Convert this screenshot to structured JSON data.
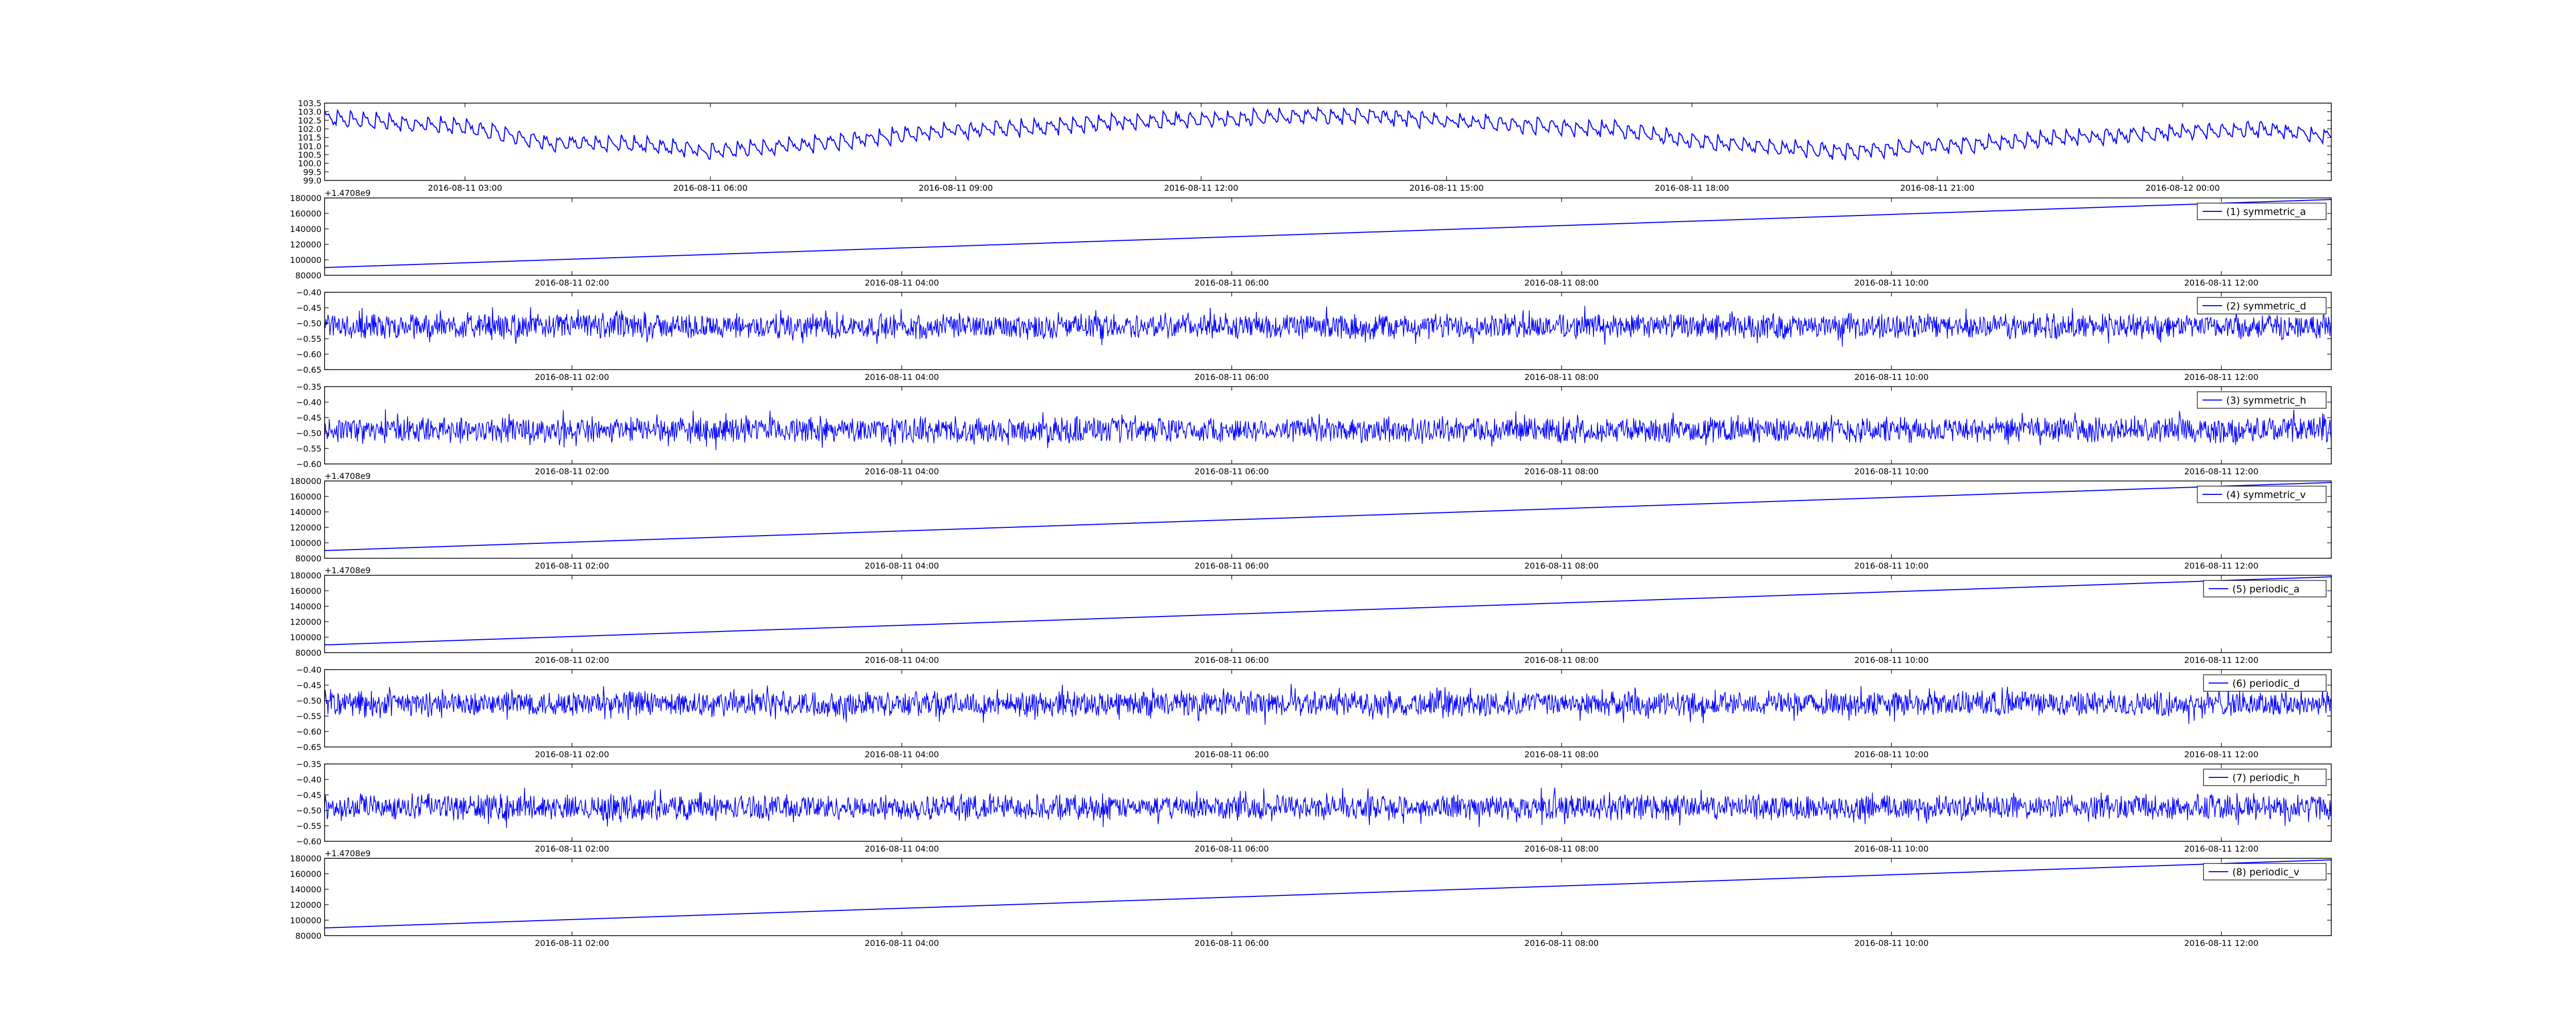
{
  "figure": {
    "background": "#ffffff",
    "line_color": "#0000ff"
  },
  "chart_data": [
    {
      "type": "line",
      "legend": "",
      "offset_label": "",
      "ylim": [
        99.0,
        103.5
      ],
      "yticks": [
        "99.0",
        "99.5",
        "100.0",
        "100.5",
        "101.0",
        "101.5",
        "102.0",
        "102.5",
        "103.0",
        "103.5"
      ],
      "xlim": [
        "2016-08-11 01:17",
        "2016-08-12 01:49"
      ],
      "xticks": [
        {
          "x": "2016-08-11 03:00",
          "label": "2016-08-11 03:00"
        },
        {
          "x": "2016-08-11 06:00",
          "label": "2016-08-11 06:00"
        },
        {
          "x": "2016-08-11 09:00",
          "label": "2016-08-11 09:00"
        },
        {
          "x": "2016-08-11 12:00",
          "label": "2016-08-11 12:00"
        },
        {
          "x": "2016-08-11 15:00",
          "label": "2016-08-11 15:00"
        },
        {
          "x": "2016-08-11 18:00",
          "label": "2016-08-11 18:00"
        },
        {
          "x": "2016-08-11 21:00",
          "label": "2016-08-11 21:00"
        },
        {
          "x": "2016-08-12 00:00",
          "label": "2016-08-12 00:00"
        }
      ],
      "series": [
        {
          "x": [
            "2016-08-11 01:17",
            "2016-08-11 02:00",
            "2016-08-11 03:00",
            "2016-08-11 04:00",
            "2016-08-11 05:00",
            "2016-08-11 06:00",
            "2016-08-11 07:00",
            "2016-08-11 08:00",
            "2016-08-11 09:00",
            "2016-08-11 10:00",
            "2016-08-11 11:00",
            "2016-08-11 12:00",
            "2016-08-11 13:00",
            "2016-08-11 14:00",
            "2016-08-11 15:00",
            "2016-08-11 16:00",
            "2016-08-11 17:00",
            "2016-08-11 18:00",
            "2016-08-11 19:00",
            "2016-08-11 20:00",
            "2016-08-11 21:00",
            "2016-08-11 22:00",
            "2016-08-11 23:00",
            "2016-08-12 00:00",
            "2016-08-12 01:00",
            "2016-08-12 01:49"
          ],
          "values": [
            102.5,
            102.3,
            102.0,
            101.1,
            101.0,
            100.6,
            100.9,
            101.4,
            101.8,
            102.0,
            102.3,
            102.4,
            102.6,
            102.7,
            102.4,
            102.1,
            101.9,
            101.2,
            100.8,
            100.6,
            100.9,
            101.2,
            101.5,
            101.7,
            101.9,
            101.4
          ]
        }
      ]
    },
    {
      "type": "line",
      "legend": "(1) symmetric_a",
      "offset_label": "+1.4708e9",
      "ylim": [
        80000,
        180000
      ],
      "yticks": [
        "80000",
        "100000",
        "120000",
        "140000",
        "160000",
        "180000"
      ],
      "xlim": [
        "2016-08-11 00:30",
        "2016-08-11 12:40"
      ],
      "xticks": [
        {
          "x": "2016-08-11 02:00",
          "label": "2016-08-11 02:00"
        },
        {
          "x": "2016-08-11 04:00",
          "label": "2016-08-11 04:00"
        },
        {
          "x": "2016-08-11 06:00",
          "label": "2016-08-11 06:00"
        },
        {
          "x": "2016-08-11 08:00",
          "label": "2016-08-11 08:00"
        },
        {
          "x": "2016-08-11 10:00",
          "label": "2016-08-11 10:00"
        },
        {
          "x": "2016-08-11 12:00",
          "label": "2016-08-11 12:00"
        }
      ],
      "series": [
        {
          "name": "(1) symmetric_a",
          "x": [
            "2016-08-11 00:30",
            "2016-08-11 12:40"
          ],
          "values": [
            90000,
            178000
          ]
        }
      ]
    },
    {
      "type": "line",
      "legend": "(2) symmetric_d",
      "offset_label": "",
      "ylim": [
        -0.65,
        -0.4
      ],
      "yticks": [
        "−0.65",
        "−0.60",
        "−0.55",
        "−0.50",
        "−0.45",
        "−0.40"
      ],
      "xlim": [
        "2016-08-11 00:30",
        "2016-08-11 12:40"
      ],
      "xticks": [
        {
          "x": "2016-08-11 02:00",
          "label": "2016-08-11 02:00"
        },
        {
          "x": "2016-08-11 04:00",
          "label": "2016-08-11 04:00"
        },
        {
          "x": "2016-08-11 06:00",
          "label": "2016-08-11 06:00"
        },
        {
          "x": "2016-08-11 08:00",
          "label": "2016-08-11 08:00"
        },
        {
          "x": "2016-08-11 10:00",
          "label": "2016-08-11 10:00"
        },
        {
          "x": "2016-08-11 12:00",
          "label": "2016-08-11 12:00"
        }
      ],
      "series": [
        {
          "name": "(2) symmetric_d",
          "center": -0.51,
          "spread": 0.09
        }
      ]
    },
    {
      "type": "line",
      "legend": "(3) symmetric_h",
      "offset_label": "",
      "ylim": [
        -0.6,
        -0.35
      ],
      "yticks": [
        "−0.60",
        "−0.55",
        "−0.50",
        "−0.45",
        "−0.40",
        "−0.35"
      ],
      "xlim": [
        "2016-08-11 00:30",
        "2016-08-11 12:40"
      ],
      "xticks": [
        {
          "x": "2016-08-11 02:00",
          "label": "2016-08-11 02:00"
        },
        {
          "x": "2016-08-11 04:00",
          "label": "2016-08-11 04:00"
        },
        {
          "x": "2016-08-11 06:00",
          "label": "2016-08-11 06:00"
        },
        {
          "x": "2016-08-11 08:00",
          "label": "2016-08-11 08:00"
        },
        {
          "x": "2016-08-11 10:00",
          "label": "2016-08-11 10:00"
        },
        {
          "x": "2016-08-11 12:00",
          "label": "2016-08-11 12:00"
        }
      ],
      "series": [
        {
          "name": "(3) symmetric_h",
          "center": -0.49,
          "spread": 0.09
        }
      ]
    },
    {
      "type": "line",
      "legend": "(4) symmetric_v",
      "offset_label": "+1.4708e9",
      "ylim": [
        80000,
        180000
      ],
      "yticks": [
        "80000",
        "100000",
        "120000",
        "140000",
        "160000",
        "180000"
      ],
      "xlim": [
        "2016-08-11 00:30",
        "2016-08-11 12:40"
      ],
      "xticks": [
        {
          "x": "2016-08-11 02:00",
          "label": "2016-08-11 02:00"
        },
        {
          "x": "2016-08-11 04:00",
          "label": "2016-08-11 04:00"
        },
        {
          "x": "2016-08-11 06:00",
          "label": "2016-08-11 06:00"
        },
        {
          "x": "2016-08-11 08:00",
          "label": "2016-08-11 08:00"
        },
        {
          "x": "2016-08-11 10:00",
          "label": "2016-08-11 10:00"
        },
        {
          "x": "2016-08-11 12:00",
          "label": "2016-08-11 12:00"
        }
      ],
      "series": [
        {
          "name": "(4) symmetric_v",
          "x": [
            "2016-08-11 00:30",
            "2016-08-11 12:40"
          ],
          "values": [
            90000,
            178000
          ]
        }
      ]
    },
    {
      "type": "line",
      "legend": "(5) periodic_a",
      "offset_label": "+1.4708e9",
      "ylim": [
        80000,
        180000
      ],
      "yticks": [
        "80000",
        "100000",
        "120000",
        "140000",
        "160000",
        "180000"
      ],
      "xlim": [
        "2016-08-11 00:30",
        "2016-08-11 12:40"
      ],
      "xticks": [
        {
          "x": "2016-08-11 02:00",
          "label": "2016-08-11 02:00"
        },
        {
          "x": "2016-08-11 04:00",
          "label": "2016-08-11 04:00"
        },
        {
          "x": "2016-08-11 06:00",
          "label": "2016-08-11 06:00"
        },
        {
          "x": "2016-08-11 08:00",
          "label": "2016-08-11 08:00"
        },
        {
          "x": "2016-08-11 10:00",
          "label": "2016-08-11 10:00"
        },
        {
          "x": "2016-08-11 12:00",
          "label": "2016-08-11 12:00"
        }
      ],
      "series": [
        {
          "name": "(5) periodic_a",
          "x": [
            "2016-08-11 00:30",
            "2016-08-11 12:40"
          ],
          "values": [
            90000,
            178000
          ]
        }
      ]
    },
    {
      "type": "line",
      "legend": "(6) periodic_d",
      "offset_label": "",
      "ylim": [
        -0.65,
        -0.4
      ],
      "yticks": [
        "−0.65",
        "−0.60",
        "−0.55",
        "−0.50",
        "−0.45",
        "−0.40"
      ],
      "xlim": [
        "2016-08-11 00:30",
        "2016-08-11 12:40"
      ],
      "xticks": [
        {
          "x": "2016-08-11 02:00",
          "label": "2016-08-11 02:00"
        },
        {
          "x": "2016-08-11 04:00",
          "label": "2016-08-11 04:00"
        },
        {
          "x": "2016-08-11 06:00",
          "label": "2016-08-11 06:00"
        },
        {
          "x": "2016-08-11 08:00",
          "label": "2016-08-11 08:00"
        },
        {
          "x": "2016-08-11 10:00",
          "label": "2016-08-11 10:00"
        },
        {
          "x": "2016-08-11 12:00",
          "label": "2016-08-11 12:00"
        }
      ],
      "series": [
        {
          "name": "(6) periodic_d",
          "center": -0.51,
          "spread": 0.09
        }
      ]
    },
    {
      "type": "line",
      "legend": "(7) periodic_h",
      "offset_label": "",
      "ylim": [
        -0.6,
        -0.35
      ],
      "yticks": [
        "−0.60",
        "−0.55",
        "−0.50",
        "−0.45",
        "−0.40",
        "−0.35"
      ],
      "xlim": [
        "2016-08-11 00:30",
        "2016-08-11 12:40"
      ],
      "xticks": [
        {
          "x": "2016-08-11 02:00",
          "label": "2016-08-11 02:00"
        },
        {
          "x": "2016-08-11 04:00",
          "label": "2016-08-11 04:00"
        },
        {
          "x": "2016-08-11 06:00",
          "label": "2016-08-11 06:00"
        },
        {
          "x": "2016-08-11 08:00",
          "label": "2016-08-11 08:00"
        },
        {
          "x": "2016-08-11 10:00",
          "label": "2016-08-11 10:00"
        },
        {
          "x": "2016-08-11 12:00",
          "label": "2016-08-11 12:00"
        }
      ],
      "series": [
        {
          "name": "(7) periodic_h",
          "center": -0.49,
          "spread": 0.09
        }
      ]
    },
    {
      "type": "line",
      "legend": "(8) periodic_v",
      "offset_label": "+1.4708e9",
      "ylim": [
        80000,
        180000
      ],
      "yticks": [
        "80000",
        "100000",
        "120000",
        "140000",
        "160000",
        "180000"
      ],
      "xlim": [
        "2016-08-11 00:30",
        "2016-08-11 12:40"
      ],
      "xticks": [
        {
          "x": "2016-08-11 02:00",
          "label": "2016-08-11 02:00"
        },
        {
          "x": "2016-08-11 04:00",
          "label": "2016-08-11 04:00"
        },
        {
          "x": "2016-08-11 06:00",
          "label": "2016-08-11 06:00"
        },
        {
          "x": "2016-08-11 08:00",
          "label": "2016-08-11 08:00"
        },
        {
          "x": "2016-08-11 10:00",
          "label": "2016-08-11 10:00"
        },
        {
          "x": "2016-08-11 12:00",
          "label": "2016-08-11 12:00"
        }
      ],
      "series": [
        {
          "name": "(8) periodic_v",
          "x": [
            "2016-08-11 00:30",
            "2016-08-11 12:40"
          ],
          "values": [
            90000,
            178000
          ]
        }
      ]
    }
  ]
}
